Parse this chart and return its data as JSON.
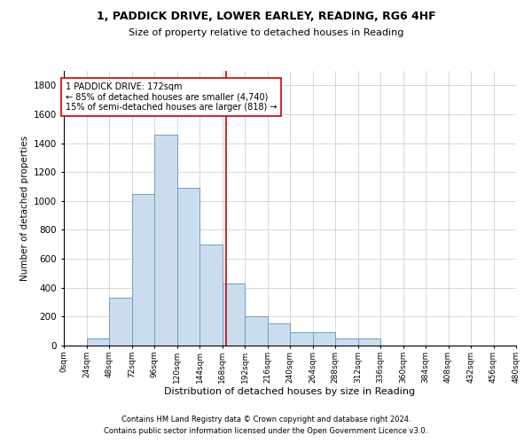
{
  "title": "1, PADDICK DRIVE, LOWER EARLEY, READING, RG6 4HF",
  "subtitle": "Size of property relative to detached houses in Reading",
  "xlabel": "Distribution of detached houses by size in Reading",
  "ylabel": "Number of detached properties",
  "footnote1": "Contains HM Land Registry data © Crown copyright and database right 2024.",
  "footnote2": "Contains public sector information licensed under the Open Government Licence v3.0.",
  "bar_edges": [
    0,
    24,
    48,
    72,
    96,
    120,
    144,
    168,
    192,
    216,
    240,
    264,
    288,
    312,
    336,
    360,
    384,
    408,
    432,
    456,
    480
  ],
  "bar_heights": [
    0,
    50,
    330,
    1050,
    1460,
    1090,
    700,
    430,
    200,
    155,
    90,
    90,
    50,
    50,
    0,
    0,
    0,
    0,
    0,
    0
  ],
  "bar_color": "#ccdcef",
  "bar_edge_color": "#6a9ec5",
  "reference_line_x": 172,
  "ylim": [
    0,
    1900
  ],
  "yticks": [
    0,
    200,
    400,
    600,
    800,
    1000,
    1200,
    1400,
    1600,
    1800
  ],
  "annotation_line1": "1 PADDICK DRIVE: 172sqm",
  "annotation_line2": "← 85% of detached houses are smaller (4,740)",
  "annotation_line3": "15% of semi-detached houses are larger (818) →",
  "ref_line_color": "#cc0000",
  "background_color": "#ffffff",
  "grid_color": "#c8c8c8"
}
